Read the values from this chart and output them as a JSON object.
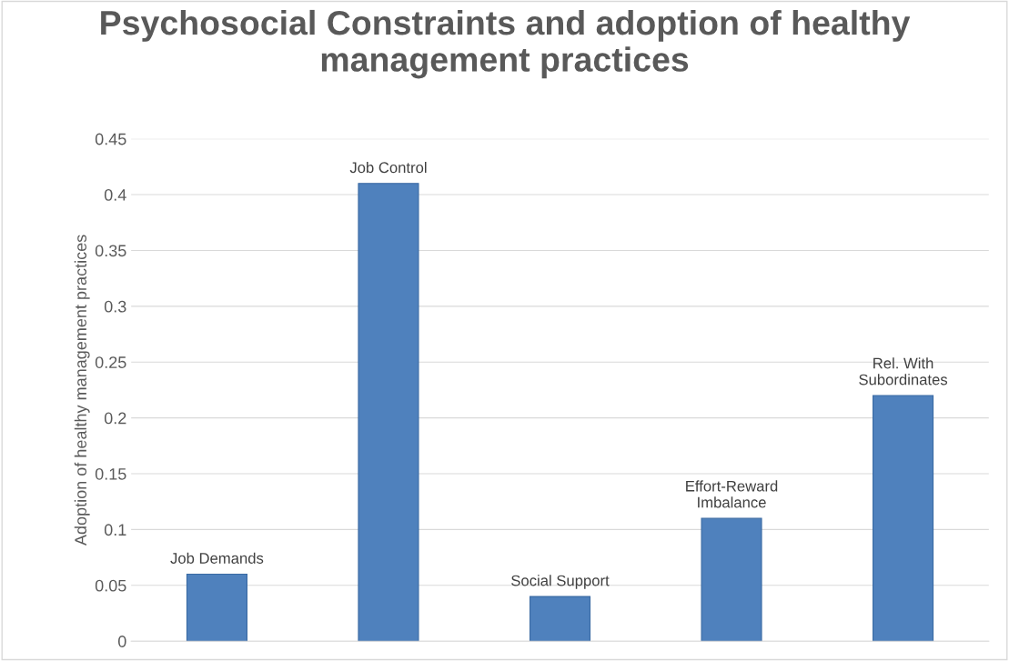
{
  "chart_data": {
    "type": "bar",
    "title": "Psychosocial Constraints and adoption of healthy management practices",
    "ylabel": "Adoption of healthy management practices",
    "categories": [
      "Job Demands",
      "Job Control",
      "Social Support",
      "Effort-Reward\nImbalance",
      "Rel. With\nSubordinates"
    ],
    "values": [
      0.06,
      0.41,
      0.04,
      0.11,
      0.22
    ],
    "color": "#4f81bd",
    "ylim": [
      0,
      0.45
    ],
    "yticks": [
      0,
      0.05,
      0.1,
      0.15,
      0.2,
      0.25,
      0.3,
      0.35,
      0.4,
      0.45
    ],
    "grid": "y",
    "legend": false
  }
}
